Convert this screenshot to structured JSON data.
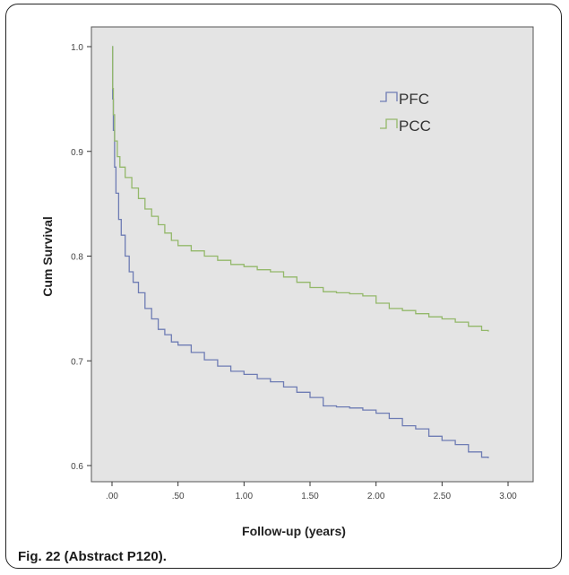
{
  "caption": "Fig. 22 (Abstract P120).",
  "colors": {
    "plot_background": "#e4e4e4",
    "pfc": "#6e7cb4",
    "pcc": "#93b86a",
    "axis": "#333333"
  },
  "chart_data": {
    "type": "line",
    "xlabel": "Follow-up (years)",
    "ylabel": "Cum Survival",
    "xlim": [
      0,
      3.0
    ],
    "ylim": [
      0.6,
      1.0
    ],
    "x_ticks": [
      0,
      0.5,
      1.0,
      1.5,
      2.0,
      2.5,
      3.0
    ],
    "x_tick_labels": [
      ".00",
      ".50",
      "1.00",
      "1.50",
      "2.00",
      "2.50",
      "3.00"
    ],
    "y_ticks": [
      0.6,
      0.7,
      0.8,
      0.9,
      1.0
    ],
    "y_tick_labels": [
      "0.6",
      "0.7",
      "0.8",
      "0.9",
      "1.0"
    ],
    "legend_position": "top-right",
    "grid": false,
    "series": [
      {
        "name": "PFC",
        "color": "#6e7cb4",
        "x": [
          0,
          0.005,
          0.01,
          0.02,
          0.03,
          0.05,
          0.07,
          0.1,
          0.13,
          0.16,
          0.2,
          0.25,
          0.3,
          0.35,
          0.4,
          0.45,
          0.5,
          0.6,
          0.7,
          0.8,
          0.9,
          1.0,
          1.1,
          1.2,
          1.3,
          1.4,
          1.5,
          1.6,
          1.7,
          1.8,
          1.9,
          2.0,
          2.1,
          2.2,
          2.3,
          2.4,
          2.5,
          2.6,
          2.7,
          2.8,
          2.85
        ],
        "y": [
          1.0,
          0.95,
          0.92,
          0.885,
          0.86,
          0.835,
          0.82,
          0.8,
          0.785,
          0.775,
          0.765,
          0.75,
          0.74,
          0.73,
          0.725,
          0.718,
          0.715,
          0.708,
          0.701,
          0.695,
          0.69,
          0.687,
          0.683,
          0.68,
          0.675,
          0.67,
          0.665,
          0.657,
          0.656,
          0.655,
          0.653,
          0.65,
          0.645,
          0.638,
          0.635,
          0.628,
          0.624,
          0.62,
          0.613,
          0.608,
          0.607
        ]
      },
      {
        "name": "PCC",
        "color": "#93b86a",
        "x": [
          0,
          0.005,
          0.01,
          0.02,
          0.04,
          0.06,
          0.1,
          0.15,
          0.2,
          0.25,
          0.3,
          0.35,
          0.4,
          0.45,
          0.5,
          0.6,
          0.7,
          0.8,
          0.9,
          1.0,
          1.1,
          1.2,
          1.3,
          1.4,
          1.5,
          1.6,
          1.7,
          1.8,
          1.9,
          2.0,
          2.1,
          2.2,
          2.3,
          2.4,
          2.5,
          2.6,
          2.7,
          2.8,
          2.85
        ],
        "y": [
          1.0,
          0.96,
          0.935,
          0.91,
          0.895,
          0.885,
          0.875,
          0.865,
          0.855,
          0.845,
          0.838,
          0.83,
          0.822,
          0.815,
          0.81,
          0.805,
          0.8,
          0.796,
          0.792,
          0.79,
          0.787,
          0.785,
          0.78,
          0.775,
          0.77,
          0.766,
          0.765,
          0.764,
          0.762,
          0.755,
          0.75,
          0.748,
          0.745,
          0.742,
          0.74,
          0.737,
          0.733,
          0.729,
          0.728
        ]
      }
    ]
  }
}
